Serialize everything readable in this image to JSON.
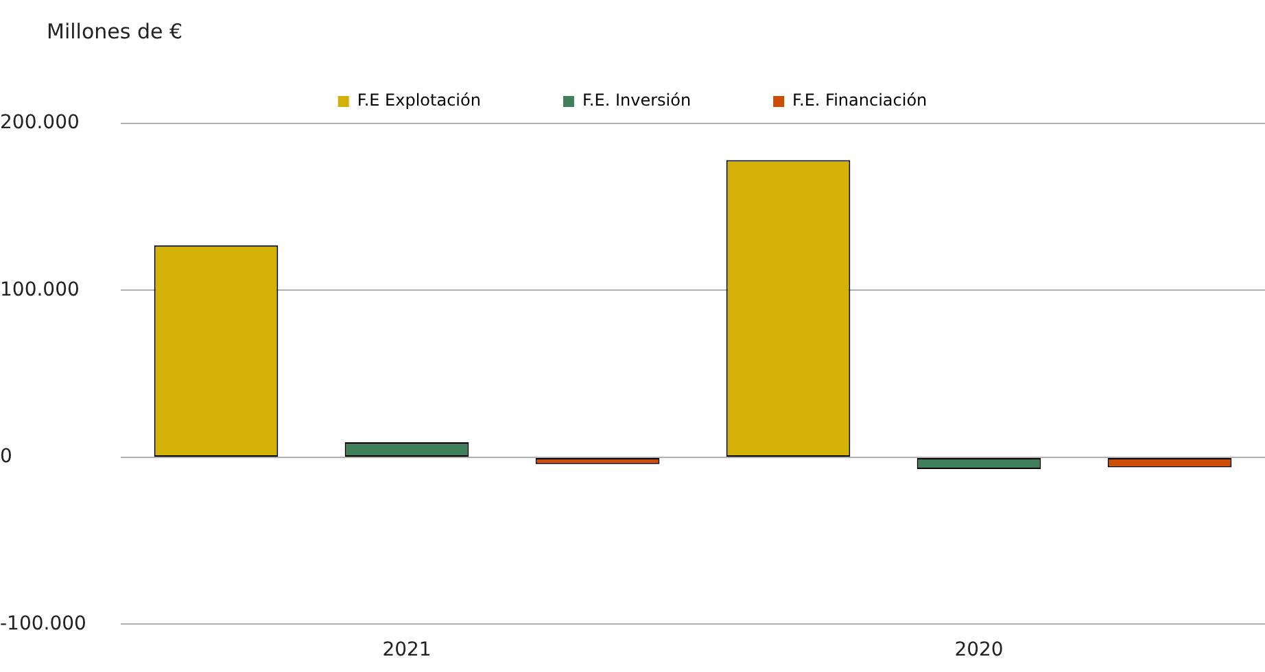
{
  "chart_data": {
    "type": "bar",
    "ylabel": "Millones de €",
    "categories": [
      "2021",
      "2020"
    ],
    "series": [
      {
        "name": "F.E Explotación",
        "color": "#d4b106",
        "values": [
          127000,
          178000
        ]
      },
      {
        "name": "F.E. Inversión",
        "color": "#3f7f5a",
        "values": [
          9000,
          -7000
        ]
      },
      {
        "name": "F.E. Financiación",
        "color": "#cc4e06",
        "values": [
          -4000,
          -6000
        ]
      }
    ],
    "ylim": [
      -100000,
      200000
    ],
    "yticks": [
      {
        "value": -100000,
        "label": "-100.000"
      },
      {
        "value": 0,
        "label": "0"
      },
      {
        "value": 100000,
        "label": "100.000"
      },
      {
        "value": 200000,
        "label": "200.000"
      }
    ],
    "grid": "y",
    "legend": "top"
  }
}
